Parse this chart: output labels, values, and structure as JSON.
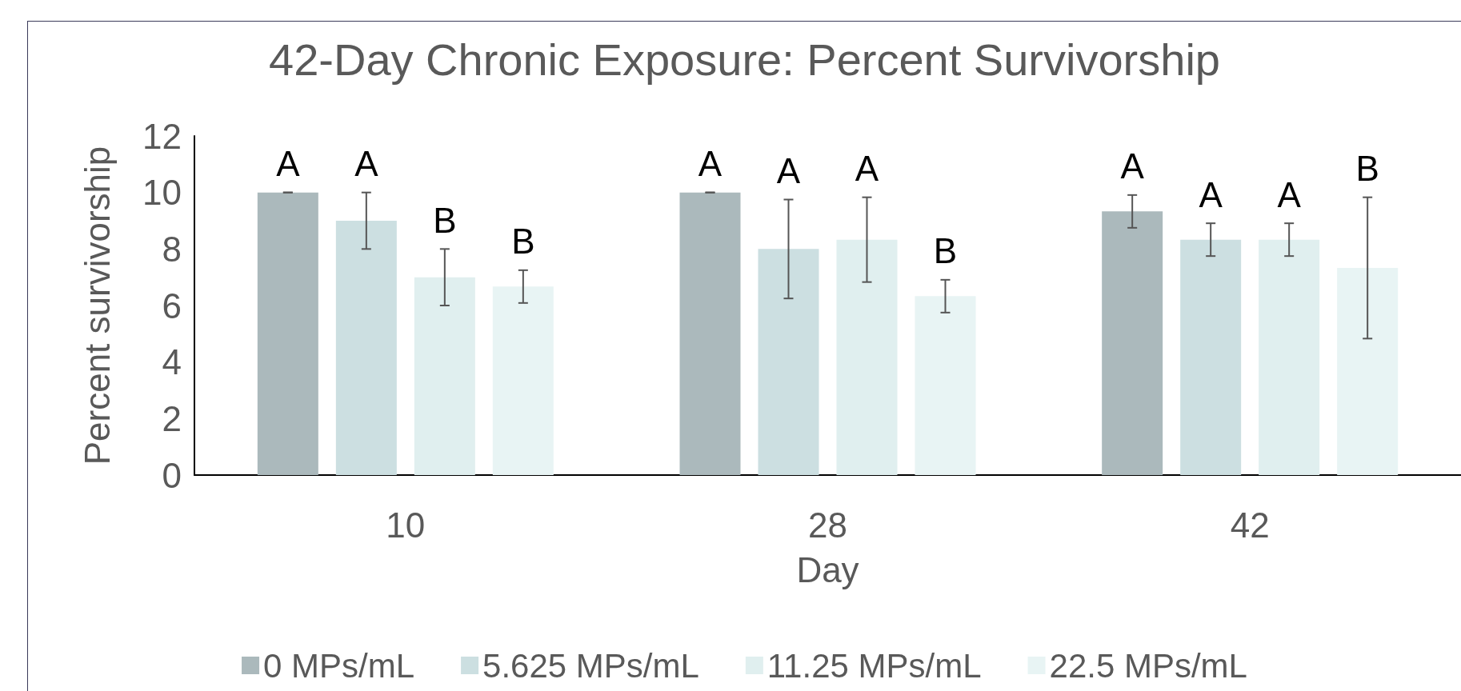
{
  "chart_data": {
    "type": "bar",
    "title": "42-Day Chronic Exposure: Percent Survivorship",
    "xlabel": "Day",
    "ylabel": "Percent survivorship",
    "categories": [
      "10",
      "28",
      "42"
    ],
    "series": [
      {
        "name": "0 MPs/mL",
        "color": "#abb9bc",
        "values": [
          10,
          10,
          9.33
        ],
        "errors": [
          0,
          0,
          0.58
        ]
      },
      {
        "name": "5.625 MPs/mL",
        "color": "#ccdfe1",
        "values": [
          9,
          8,
          8.33
        ],
        "errors": [
          1,
          1.75,
          0.58
        ]
      },
      {
        "name": "11.25 MPs/mL",
        "color": "#e0efef",
        "values": [
          7,
          8.33,
          8.33
        ],
        "errors": [
          1,
          1.5,
          0.58
        ]
      },
      {
        "name": "22.5 MPs/mL",
        "color": "#e8f4f4",
        "values": [
          6.67,
          6.33,
          7.33
        ],
        "errors": [
          0.58,
          0.58,
          2.5
        ]
      }
    ],
    "ylim": [
      0,
      12
    ],
    "yticks": [
      0,
      2,
      4,
      6,
      8,
      10,
      12
    ],
    "grid": false,
    "legend": "bottom",
    "annotations": [
      "A",
      "A",
      "B",
      "B",
      "A",
      "A",
      "A",
      "B",
      "A",
      "A",
      "A",
      "B"
    ]
  }
}
